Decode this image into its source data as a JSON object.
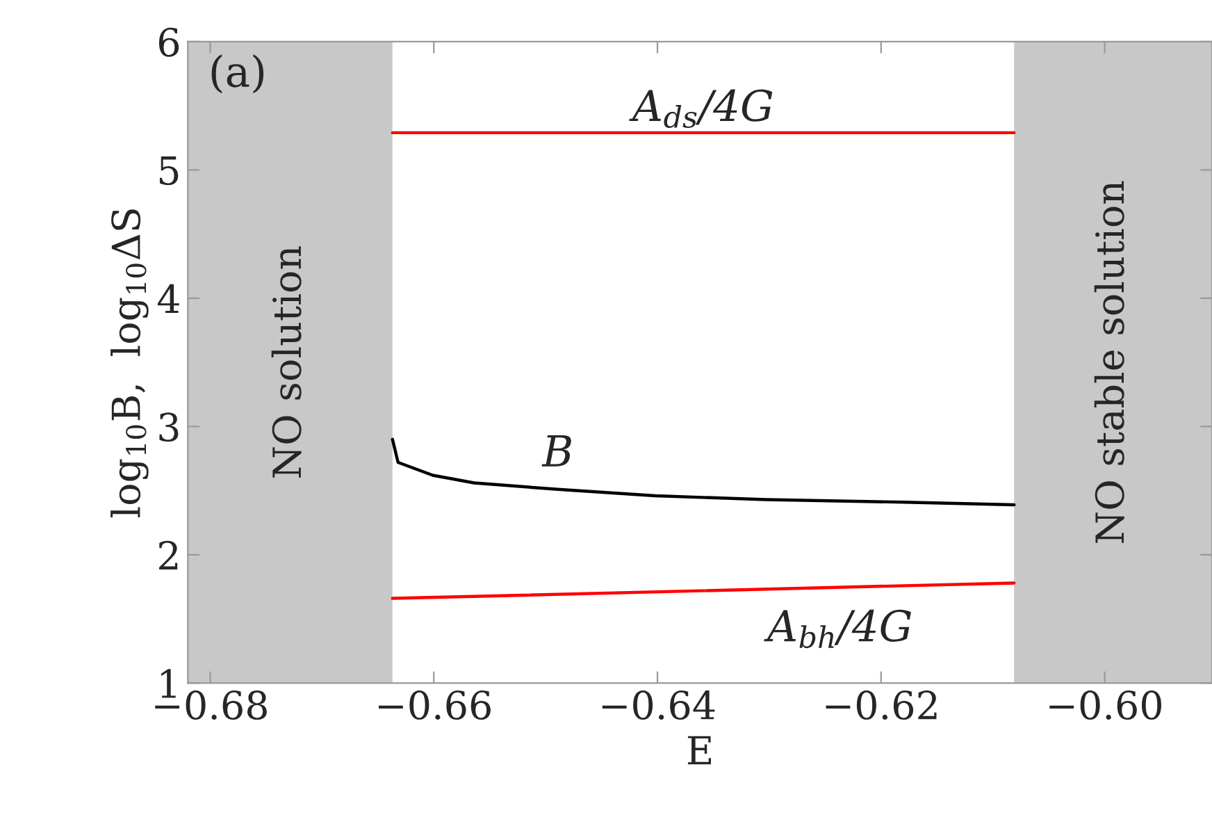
{
  "chart_data": {
    "type": "line",
    "xlabel": "E",
    "ylabel": "log$_{10}$B,  log$_{10}$ΔS",
    "xlim": [
      -0.682,
      -0.5904
    ],
    "ylim": [
      1,
      6
    ],
    "xticks": [
      {
        "value": -0.68,
        "label": "−0.68"
      },
      {
        "value": -0.66,
        "label": "−0.66"
      },
      {
        "value": -0.64,
        "label": "−0.64"
      },
      {
        "value": -0.62,
        "label": "−0.62"
      },
      {
        "value": -0.6,
        "label": "−0.60"
      }
    ],
    "yticks": [
      1,
      2,
      3,
      4,
      5,
      6
    ],
    "series": [
      {
        "name": "A$_{ds}$/4G",
        "color": "#ff0000",
        "x": [
          -0.6637,
          -0.6081
        ],
        "values": [
          5.29,
          5.29
        ]
      },
      {
        "name": "B",
        "color": "#000000",
        "x": [
          -0.6637,
          -0.6632,
          -0.6601,
          -0.6564,
          -0.6489,
          -0.6402,
          -0.6303,
          -0.6179,
          -0.6081
        ],
        "values": [
          2.9,
          2.72,
          2.62,
          2.56,
          2.51,
          2.46,
          2.43,
          2.41,
          2.39
        ]
      },
      {
        "name": "A$_{bh}$/4G",
        "color": "#ff0000",
        "x": [
          -0.6637,
          -0.6081
        ],
        "values": [
          1.66,
          1.78
        ]
      }
    ],
    "bands": [
      {
        "axis": "x",
        "from": -0.682,
        "to": -0.6637,
        "label": "NO solution",
        "color": "#c8c8c8"
      },
      {
        "axis": "x",
        "from": -0.6081,
        "to": -0.5904,
        "label": "NO stable solution",
        "color": "#c8c8c8"
      }
    ],
    "annotations": [
      "(a)"
    ],
    "grid": false,
    "legend": false,
    "marker": "none",
    "line_style": "solid"
  }
}
